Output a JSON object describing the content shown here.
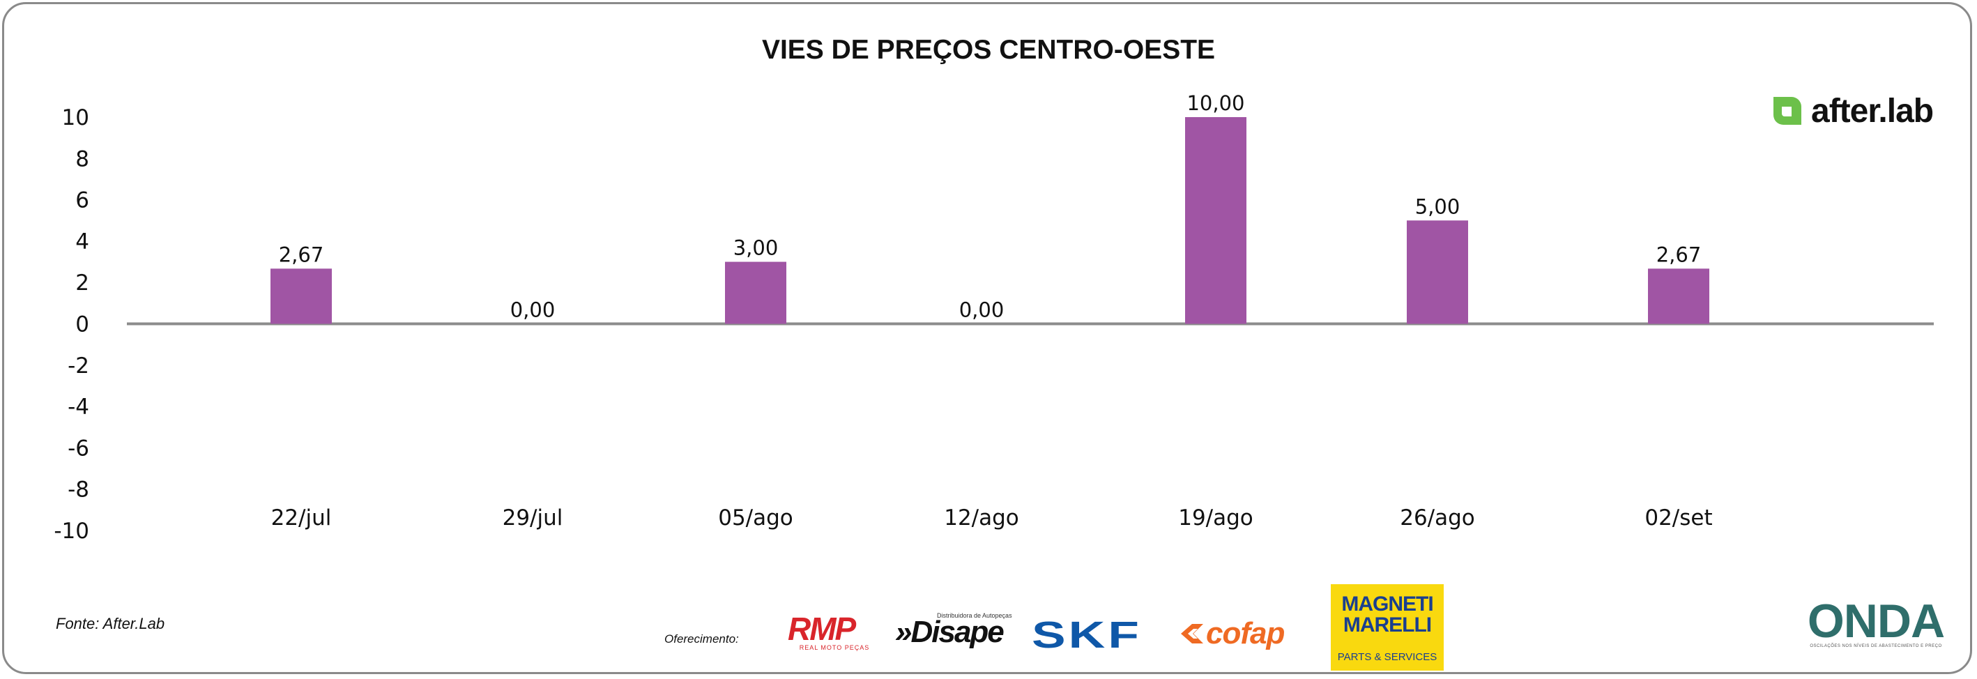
{
  "chart_data": {
    "type": "bar",
    "title": "VIES DE PREÇOS CENTRO-OESTE",
    "categories": [
      "22/jul",
      "29/jul",
      "05/ago",
      "12/ago",
      "19/ago",
      "26/ago",
      "02/set"
    ],
    "values": [
      2.67,
      0.0,
      3.0,
      0.0,
      10.0,
      5.0,
      2.67
    ],
    "data_labels": [
      "2,67",
      "0,00",
      "3,00",
      "0,00",
      "10,00",
      "5,00",
      "2,67"
    ],
    "y_ticks": [
      "10",
      "8",
      "6",
      "4",
      "2",
      "0",
      "-2",
      "-4",
      "-6",
      "-8",
      "-10"
    ],
    "ylim": [
      -10,
      10
    ],
    "grid": false,
    "legend": "none",
    "bar_color": "#a055a4",
    "axis_color": "#8c8c8c"
  },
  "footer": {
    "source": "Fonte: After.Lab",
    "sponsor_label": "Oferecimento:"
  },
  "logos": {
    "afterlab": {
      "text": "after.lab",
      "color": "#6cc04a"
    },
    "rmp": {
      "main": "RMP",
      "sub": "REAL MOTO PEÇAS"
    },
    "disape": {
      "main": "»Disape",
      "sub": "Distribuidora de Autopeças"
    },
    "skf": {
      "main": "SKF"
    },
    "cofap": {
      "main": "cofap"
    },
    "magneti": {
      "line1": "MAGNETI",
      "line2": "MARELLI",
      "sub": "PARTS & SERVICES"
    },
    "onda": {
      "main": "ONDA",
      "sub": "OSCILAÇÕES NOS NÍVEIS DE ABASTECIMENTO E PREÇO"
    }
  }
}
